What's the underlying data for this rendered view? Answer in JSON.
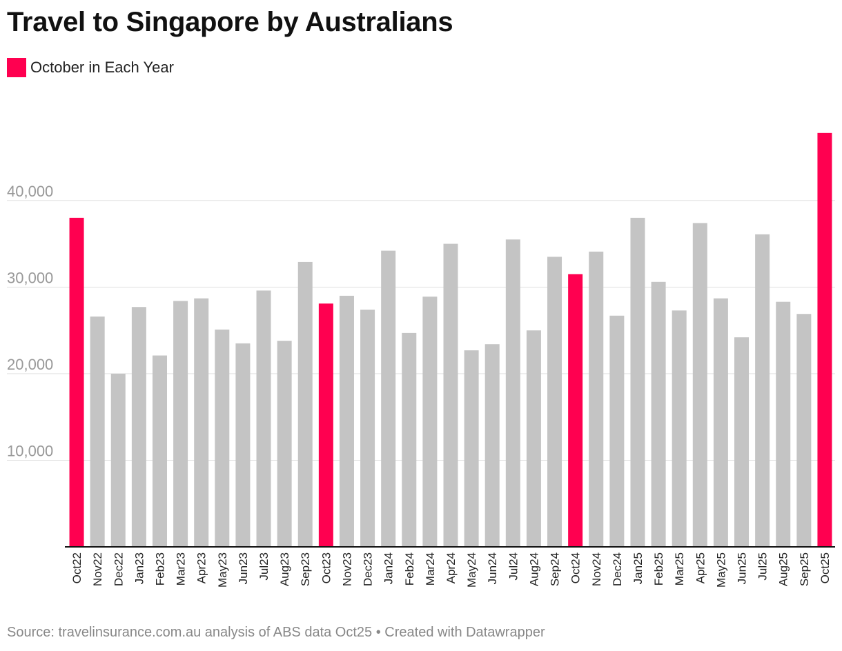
{
  "title": "Travel to Singapore by Australians",
  "legend": {
    "label": "October in Each Year",
    "color": "#ff0050"
  },
  "source": "Source: travelinsurance.com.au analysis of ABS data Oct25 • Created with Datawrapper",
  "colors": {
    "highlight": "#ff0050",
    "base": "#c4c4c4",
    "grid": "#e2e2e2",
    "axis": "#111111",
    "tick_label": "#999999"
  },
  "chart_data": {
    "type": "bar",
    "title": "Travel to Singapore by Australians",
    "xlabel": "",
    "ylabel": "",
    "ylim": [
      0,
      48000
    ],
    "y_ticks": [
      10000,
      20000,
      30000,
      40000
    ],
    "y_tick_labels": [
      "10,000",
      "20,000",
      "30,000",
      "40,000"
    ],
    "grid": true,
    "legend_position": "top-left",
    "categories": [
      "Oct22",
      "Nov22",
      "Dec22",
      "Jan23",
      "Feb23",
      "Mar23",
      "Apr23",
      "May23",
      "Jun23",
      "Jul23",
      "Aug23",
      "Sep23",
      "Oct23",
      "Nov23",
      "Dec23",
      "Jan24",
      "Feb24",
      "Mar24",
      "Apr24",
      "May24",
      "Jun24",
      "Jul24",
      "Aug24",
      "Sep24",
      "Oct24",
      "Nov24",
      "Dec24",
      "Jan25",
      "Feb25",
      "Mar25",
      "Apr25",
      "May25",
      "Jun25",
      "Jul25",
      "Aug25",
      "Sep25",
      "Oct25"
    ],
    "values": [
      38000,
      26600,
      20000,
      27700,
      22100,
      28400,
      28700,
      25100,
      23500,
      29600,
      23800,
      32900,
      28100,
      29000,
      27400,
      34200,
      24700,
      28900,
      35000,
      22700,
      23400,
      35500,
      25000,
      33500,
      31500,
      34100,
      26700,
      38000,
      30600,
      27300,
      37400,
      28700,
      24200,
      36100,
      28300,
      26900,
      47800
    ],
    "highlighted_categories": [
      "Oct22",
      "Oct23",
      "Oct24",
      "Oct25"
    ]
  }
}
